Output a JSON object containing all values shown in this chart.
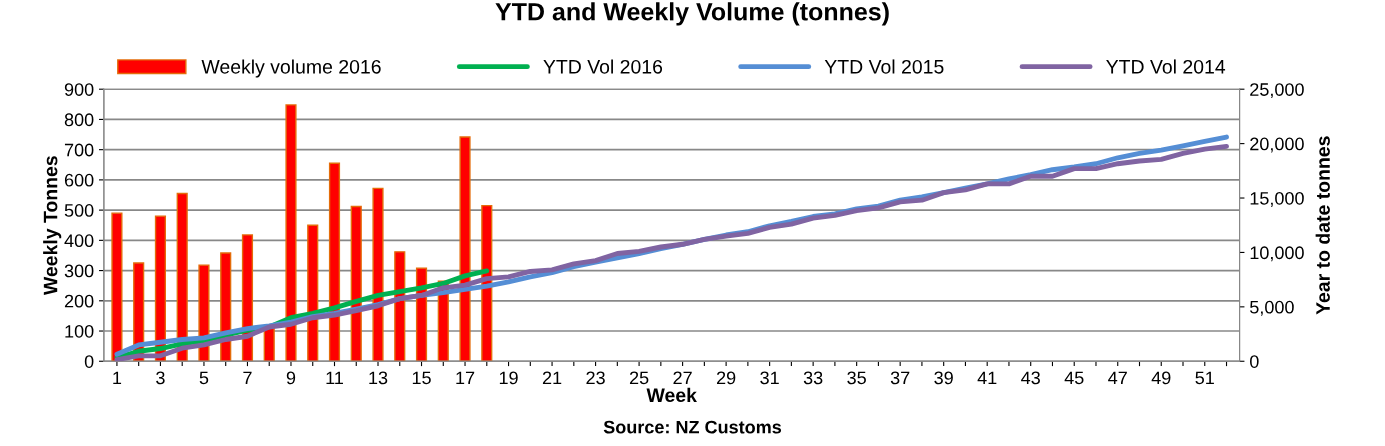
{
  "chart_data": {
    "type": "bar",
    "title": "YTD and Weekly Volume (tonnes)",
    "xlabel": "Week",
    "ylabel": "Weekly Tonnes",
    "y2label": "Year to date tonnes",
    "annotations": [
      "Source: NZ Customs"
    ],
    "categories": [
      "1",
      null,
      "3",
      null,
      "5",
      null,
      "7",
      null,
      "9",
      null,
      "11",
      null,
      "13",
      null,
      "15",
      null,
      "17",
      null,
      "19",
      null,
      "21",
      null,
      "23",
      null,
      "25",
      null,
      "27",
      null,
      "29",
      null,
      "31",
      null,
      "33",
      null,
      "35",
      null,
      "37",
      null,
      "39",
      null,
      "41",
      null,
      "43",
      null,
      "45",
      null,
      "47",
      null,
      "49",
      null,
      "51",
      null
    ],
    "ylim": [
      0,
      900
    ],
    "yticks": [
      0,
      100,
      200,
      300,
      400,
      500,
      600,
      700,
      800,
      900
    ],
    "y2lim": [
      0,
      25000
    ],
    "y2ticks": [
      0,
      {
        "value": 5000,
        "label": "5,000"
      },
      {
        "value": 10000,
        "label": "10,000"
      },
      {
        "value": 15000,
        "label": "15,000"
      },
      {
        "value": 20000,
        "label": "20,000"
      },
      {
        "value": 25000,
        "label": "25,000"
      }
    ],
    "grid": "y",
    "legend": "top",
    "series": [
      {
        "name": "Weekly volume 2016",
        "color": "#ff0000",
        "values": [
          490,
          325,
          480,
          555,
          318,
          358,
          418,
          115,
          848,
          450,
          655,
          512,
          572,
          362,
          308,
          265,
          742,
          515,
          null,
          null,
          null,
          null,
          null,
          null,
          null,
          null,
          null,
          null,
          null,
          null,
          null,
          null,
          null,
          null,
          null,
          null,
          null,
          null,
          null,
          null,
          null,
          null,
          null,
          null,
          null,
          null,
          null,
          null,
          null,
          null,
          null,
          null
        ]
      },
      {
        "name": "YTD Vol 2016",
        "type": "line",
        "axis": "y2",
        "color": "#00b050",
        "values": [
          330,
          920,
          1170,
          1600,
          1900,
          2400,
          2850,
          3150,
          4000,
          4400,
          4900,
          5500,
          6050,
          6400,
          6750,
          7150,
          7850,
          8300,
          null,
          null,
          null,
          null,
          null,
          null,
          null,
          null,
          null,
          null,
          null,
          null,
          null,
          null,
          null,
          null,
          null,
          null,
          null,
          null,
          null,
          null,
          null,
          null,
          null,
          null,
          null,
          null,
          null,
          null,
          null,
          null,
          null,
          null
        ]
      },
      {
        "name": "YTD Vol 2015",
        "type": "line",
        "axis": "y2",
        "color": "#558ed5",
        "values": [
          650,
          1500,
          1750,
          2000,
          2150,
          2600,
          3000,
          3250,
          3600,
          4100,
          4400,
          4800,
          5200,
          5750,
          6050,
          6300,
          6600,
          6900,
          7300,
          7750,
          8150,
          8700,
          9100,
          9500,
          9900,
          10350,
          10750,
          11200,
          11600,
          11900,
          12450,
          12850,
          13300,
          13550,
          14000,
          14250,
          14800,
          15100,
          15500,
          15900,
          16300,
          16750,
          17150,
          17600,
          17850,
          18150,
          18700,
          19100,
          19400,
          19800,
          20200,
          20600
        ]
      },
      {
        "name": "YTD Vol 2014",
        "type": "line",
        "axis": "y2",
        "color": "#8064a2",
        "values": [
          150,
          500,
          500,
          1200,
          1500,
          2000,
          2300,
          3150,
          3400,
          4000,
          4250,
          4650,
          5100,
          5750,
          6050,
          6750,
          7000,
          7600,
          7750,
          8250,
          8400,
          8950,
          9250,
          9900,
          10100,
          10500,
          10750,
          11200,
          11500,
          11750,
          12300,
          12600,
          13150,
          13400,
          13850,
          14100,
          14650,
          14800,
          15500,
          15750,
          16300,
          16300,
          17000,
          17000,
          17700,
          17700,
          18150,
          18400,
          18550,
          19100,
          19500,
          19750
        ]
      }
    ]
  }
}
